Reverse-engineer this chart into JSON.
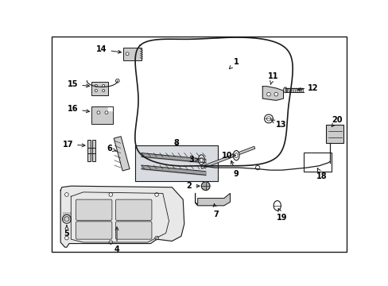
{
  "background_color": "#ffffff",
  "border_color": "#000000",
  "dark": "#1a1a1a",
  "gray_fill": "#d8d8d8",
  "light_fill": "#eeeeee",
  "box8_fill": "#d0d4d8"
}
